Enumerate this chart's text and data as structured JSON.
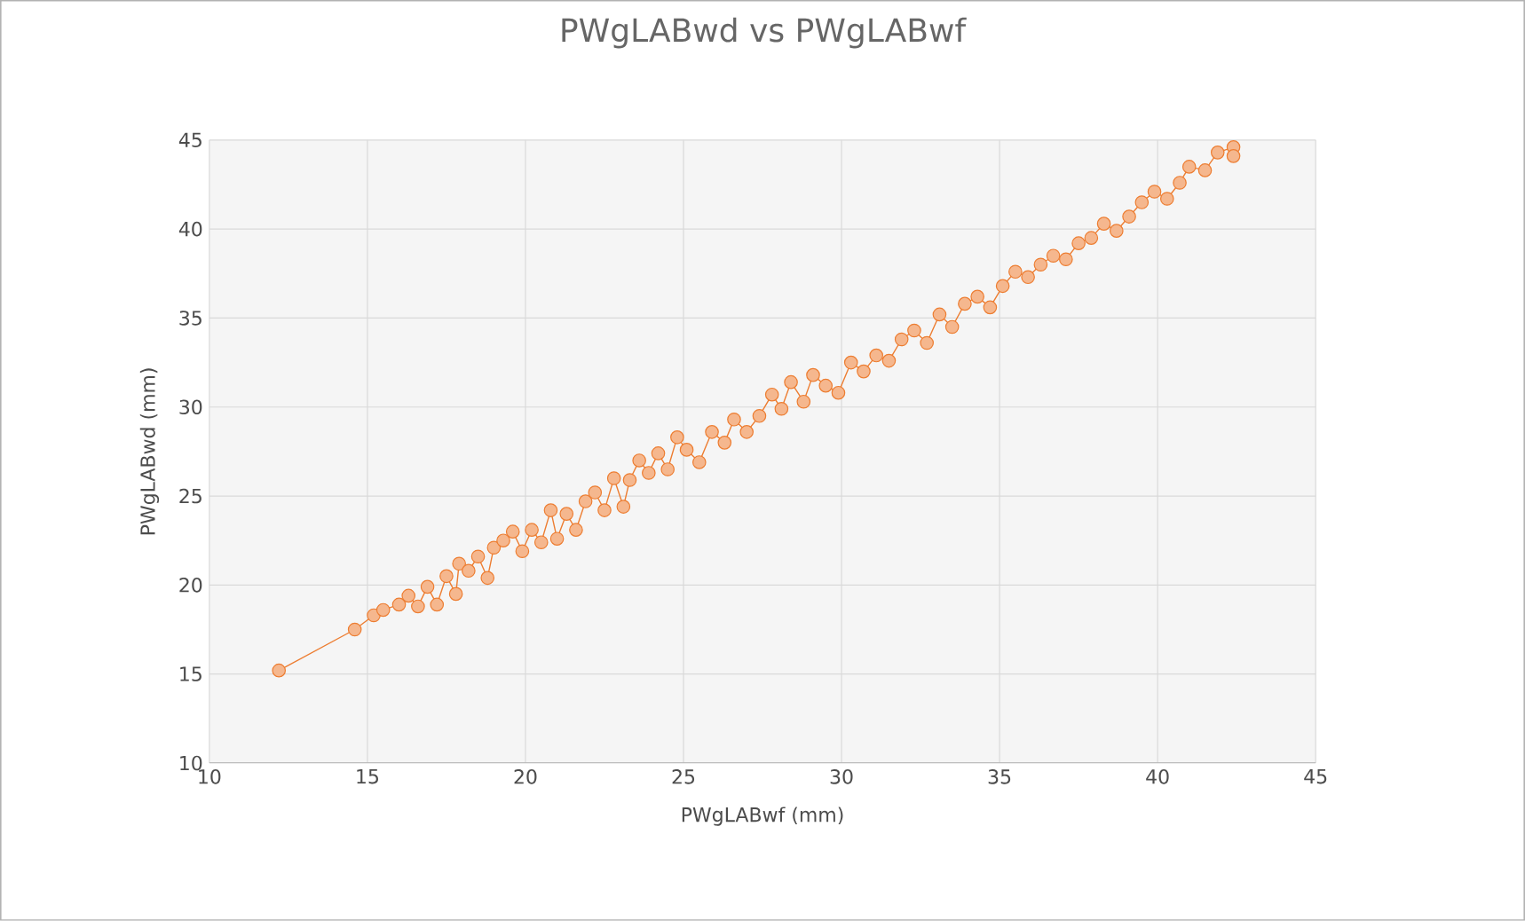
{
  "chart_data": {
    "type": "line",
    "title": "PWgLABwd  vs PWgLABwf",
    "xlabel": "PWgLABwf (mm)",
    "ylabel": "PWgLABwd  (mm)",
    "xlim": [
      10,
      45
    ],
    "xticks": [
      10,
      15,
      20,
      25,
      30,
      35,
      40,
      45
    ],
    "ylim": [
      10,
      45
    ],
    "yticks": [
      10,
      15,
      20,
      25,
      30,
      35,
      40,
      45
    ],
    "grid": true,
    "marker": "circle",
    "line_style": "solid",
    "series": [
      {
        "color": "#ed7d31",
        "x": [
          12.2,
          14.6,
          15.2,
          15.5,
          16.0,
          16.3,
          16.6,
          16.9,
          17.2,
          17.5,
          17.8,
          17.9,
          18.2,
          18.5,
          18.8,
          19.0,
          19.3,
          19.6,
          19.9,
          20.2,
          20.5,
          20.8,
          21.0,
          21.3,
          21.6,
          21.9,
          22.2,
          22.5,
          22.8,
          23.1,
          23.3,
          23.6,
          23.9,
          24.2,
          24.5,
          24.8,
          25.1,
          25.5,
          25.9,
          26.3,
          26.6,
          27.0,
          27.4,
          27.8,
          28.1,
          28.4,
          28.8,
          29.1,
          29.5,
          29.9,
          30.3,
          30.7,
          31.1,
          31.5,
          31.9,
          32.3,
          32.7,
          33.1,
          33.5,
          33.9,
          34.3,
          34.7,
          35.1,
          35.5,
          35.9,
          36.3,
          36.7,
          37.1,
          37.5,
          37.9,
          38.3,
          38.7,
          39.1,
          39.5,
          39.9,
          40.3,
          40.7,
          41.0,
          41.5,
          41.9,
          42.4,
          42.4
        ],
        "values": [
          15.2,
          17.5,
          18.3,
          18.6,
          18.9,
          19.4,
          18.8,
          19.9,
          18.9,
          20.5,
          19.5,
          21.2,
          20.8,
          21.6,
          20.4,
          22.1,
          22.5,
          23.0,
          21.9,
          23.1,
          22.4,
          24.2,
          22.6,
          24.0,
          23.1,
          24.7,
          25.2,
          24.2,
          26.0,
          24.4,
          25.9,
          27.0,
          26.3,
          27.4,
          26.5,
          28.3,
          27.6,
          26.9,
          28.6,
          28.0,
          29.3,
          28.6,
          29.5,
          30.7,
          29.9,
          31.4,
          30.3,
          31.8,
          31.2,
          30.8,
          32.5,
          32.0,
          32.9,
          32.6,
          33.8,
          34.3,
          33.6,
          35.2,
          34.5,
          35.8,
          36.2,
          35.6,
          36.8,
          37.6,
          37.3,
          38.0,
          38.5,
          38.3,
          39.2,
          39.5,
          40.3,
          39.9,
          40.7,
          41.5,
          42.1,
          41.7,
          42.6,
          43.5,
          43.3,
          44.3,
          44.6,
          44.1
        ]
      }
    ]
  }
}
